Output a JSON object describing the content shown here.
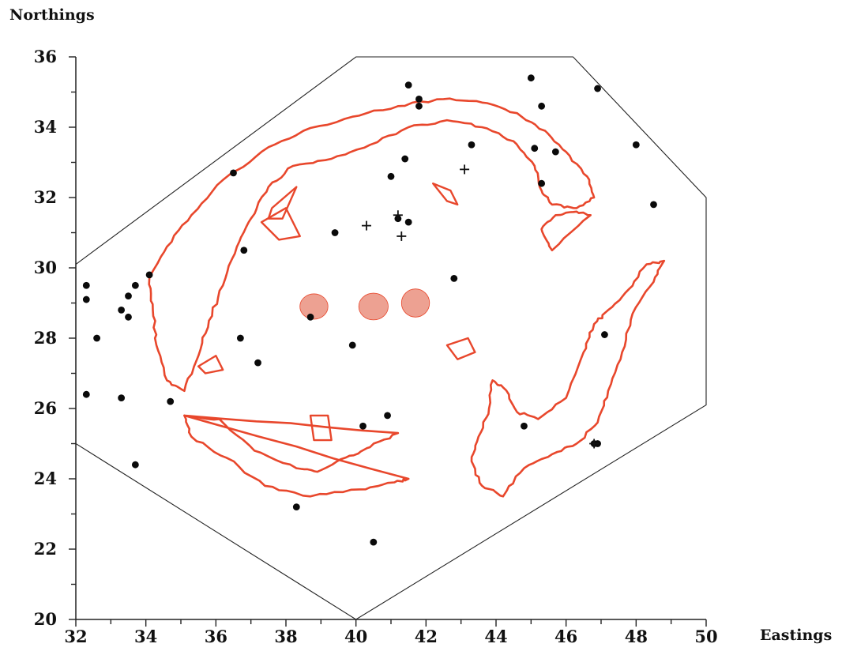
{
  "chart_data": {
    "type": "scatter",
    "xlabel": "Eastings",
    "ylabel": "Northings",
    "xlim": [
      32,
      50
    ],
    "ylim": [
      20,
      36
    ],
    "x_ticks": [
      "32",
      "34",
      "36",
      "38",
      "40",
      "42",
      "44",
      "46",
      "48",
      "50"
    ],
    "y_ticks": [
      "20",
      "22",
      "24",
      "26",
      "28",
      "30",
      "32",
      "34",
      "36"
    ],
    "grid": false,
    "colors": {
      "contour": "#e8472c",
      "fill": "#eda192",
      "point": "#0a0a0a",
      "boundary": "#222222"
    },
    "boundary": [
      [
        32,
        30.1
      ],
      [
        40,
        36
      ],
      [
        46.2,
        36
      ],
      [
        50,
        32
      ],
      [
        50,
        26.1
      ],
      [
        40,
        20
      ],
      [
        32,
        25
      ]
    ],
    "points": [
      [
        32.3,
        29.5
      ],
      [
        32.3,
        29.1
      ],
      [
        32.6,
        28
      ],
      [
        32.3,
        26.4
      ],
      [
        33.3,
        26.3
      ],
      [
        33.3,
        28.8
      ],
      [
        33.5,
        28.6
      ],
      [
        33.5,
        29.2
      ],
      [
        33.7,
        29.5
      ],
      [
        34.1,
        29.8
      ],
      [
        33.7,
        24.4
      ],
      [
        34.7,
        26.2
      ],
      [
        36.5,
        32.7
      ],
      [
        36.8,
        30.5
      ],
      [
        36.7,
        28
      ],
      [
        37.2,
        27.3
      ],
      [
        38.3,
        23.2
      ],
      [
        38.7,
        28.6
      ],
      [
        39.4,
        31
      ],
      [
        39.9,
        27.8
      ],
      [
        40.2,
        25.5
      ],
      [
        40.5,
        22.2
      ],
      [
        40.9,
        25.8
      ],
      [
        41,
        32.6
      ],
      [
        41.2,
        31.4
      ],
      [
        41.4,
        33.1
      ],
      [
        41.5,
        31.3
      ],
      [
        41.5,
        35.2
      ],
      [
        41.8,
        34.8
      ],
      [
        41.8,
        34.6
      ],
      [
        42.8,
        29.7
      ],
      [
        43.3,
        33.5
      ],
      [
        44.8,
        25.5
      ],
      [
        45,
        35.4
      ],
      [
        45.1,
        33.4
      ],
      [
        45.3,
        34.6
      ],
      [
        45.3,
        32.4
      ],
      [
        45.7,
        33.3
      ],
      [
        46.8,
        25
      ],
      [
        46.9,
        25
      ],
      [
        46.9,
        35.1
      ],
      [
        47.1,
        28.1
      ],
      [
        48,
        33.5
      ],
      [
        48.5,
        31.8
      ]
    ],
    "crosses": [
      [
        40.3,
        31.2
      ],
      [
        41.2,
        31.5
      ],
      [
        41.3,
        30.9
      ],
      [
        43.1,
        32.8
      ],
      [
        46.8,
        25
      ]
    ],
    "contours": [
      [
        [
          35.1,
          26.5
        ],
        [
          34.6,
          26.8
        ],
        [
          34.3,
          27.8
        ],
        [
          34.2,
          28.8
        ],
        [
          34.1,
          29.7
        ],
        [
          34.6,
          30.6
        ],
        [
          35.3,
          31.5
        ],
        [
          36.2,
          32.5
        ],
        [
          37.3,
          33.3
        ],
        [
          38.5,
          33.9
        ],
        [
          39.9,
          34.3
        ],
        [
          41.2,
          34.6
        ],
        [
          42.5,
          34.8
        ],
        [
          43.6,
          34.7
        ],
        [
          44.6,
          34.4
        ],
        [
          45.4,
          33.9
        ],
        [
          46,
          33.3
        ],
        [
          46.6,
          32.6
        ],
        [
          46.8,
          32
        ],
        [
          46.3,
          31.7
        ],
        [
          45.6,
          31.8
        ],
        [
          45.3,
          32.2
        ],
        [
          45.1,
          32.9
        ],
        [
          44.5,
          33.6
        ],
        [
          43.6,
          34
        ],
        [
          42.6,
          34.2
        ],
        [
          41.5,
          34
        ],
        [
          40.4,
          33.5
        ],
        [
          39.3,
          33.1
        ],
        [
          38.2,
          32.9
        ],
        [
          37.5,
          32.3
        ],
        [
          37,
          31.4
        ],
        [
          36.6,
          30.6
        ],
        [
          36.2,
          29.5
        ],
        [
          35.8,
          28.5
        ],
        [
          35.5,
          27.5
        ],
        [
          35.1,
          26.5
        ]
      ],
      [
        [
          45.6,
          30.5
        ],
        [
          45.3,
          31.1
        ],
        [
          45.7,
          31.5
        ],
        [
          46.3,
          31.6
        ],
        [
          46.7,
          31.5
        ]
      ],
      [
        [
          43.9,
          26.8
        ],
        [
          43.8,
          26
        ],
        [
          43.5,
          25.2
        ],
        [
          43.3,
          24.5
        ],
        [
          43.6,
          23.8
        ],
        [
          44.2,
          23.5
        ],
        [
          44.8,
          24.3
        ],
        [
          45.6,
          24.7
        ],
        [
          46.3,
          25
        ],
        [
          46.9,
          25.6
        ],
        [
          47.2,
          26.5
        ],
        [
          47.6,
          27.6
        ],
        [
          47.9,
          28.7
        ],
        [
          48.5,
          29.6
        ],
        [
          48.8,
          30.2
        ],
        [
          48.3,
          30.1
        ],
        [
          47.8,
          29.4
        ],
        [
          47.2,
          28.8
        ],
        [
          46.8,
          28.4
        ],
        [
          46.5,
          27.6
        ],
        [
          46,
          26.3
        ],
        [
          45.2,
          25.7
        ],
        [
          44.6,
          25.9
        ],
        [
          44.2,
          26.6
        ],
        [
          43.9,
          26.8
        ]
      ],
      [
        [
          35.1,
          25.8
        ],
        [
          36.1,
          25.7
        ],
        [
          37.1,
          24.8
        ],
        [
          38.3,
          24.3
        ],
        [
          38.9,
          24.2
        ],
        [
          39.7,
          24.6
        ],
        [
          40.4,
          24.9
        ],
        [
          41.2,
          25.3
        ]
      ],
      [
        [
          35.1,
          25.8
        ],
        [
          35.3,
          25.2
        ],
        [
          36.3,
          24.6
        ],
        [
          37.4,
          23.8
        ],
        [
          38.7,
          23.5
        ],
        [
          40.1,
          23.7
        ],
        [
          41.1,
          23.9
        ],
        [
          41.5,
          24
        ]
      ]
    ],
    "polygons": [
      [
        [
          37.6,
          31.7
        ],
        [
          38.3,
          32.3
        ],
        [
          37.9,
          31.4
        ],
        [
          37.5,
          31.4
        ]
      ],
      [
        [
          37.3,
          31.3
        ],
        [
          38,
          31.7
        ],
        [
          38.4,
          30.9
        ],
        [
          37.8,
          30.8
        ]
      ],
      [
        [
          42.2,
          32.4
        ],
        [
          42.6,
          31.9
        ],
        [
          42.9,
          31.8
        ],
        [
          42.7,
          32.2
        ]
      ],
      [
        [
          35.5,
          27.2
        ],
        [
          36,
          27.5
        ],
        [
          36.2,
          27.1
        ],
        [
          35.7,
          27
        ]
      ],
      [
        [
          38.8,
          25.1
        ],
        [
          39.3,
          25.1
        ],
        [
          39.2,
          25.8
        ],
        [
          38.7,
          25.8
        ]
      ],
      [
        [
          42.6,
          27.8
        ],
        [
          43.2,
          28
        ],
        [
          43.4,
          27.6
        ],
        [
          42.9,
          27.4
        ]
      ]
    ],
    "shaded_areas": [
      {
        "cx": 38.8,
        "cy": 28.9,
        "rx": 0.4,
        "ry": 0.36
      },
      {
        "cx": 40.5,
        "cy": 28.9,
        "rx": 0.42,
        "ry": 0.38
      },
      {
        "cx": 41.7,
        "cy": 29.0,
        "rx": 0.4,
        "ry": 0.4
      }
    ]
  }
}
